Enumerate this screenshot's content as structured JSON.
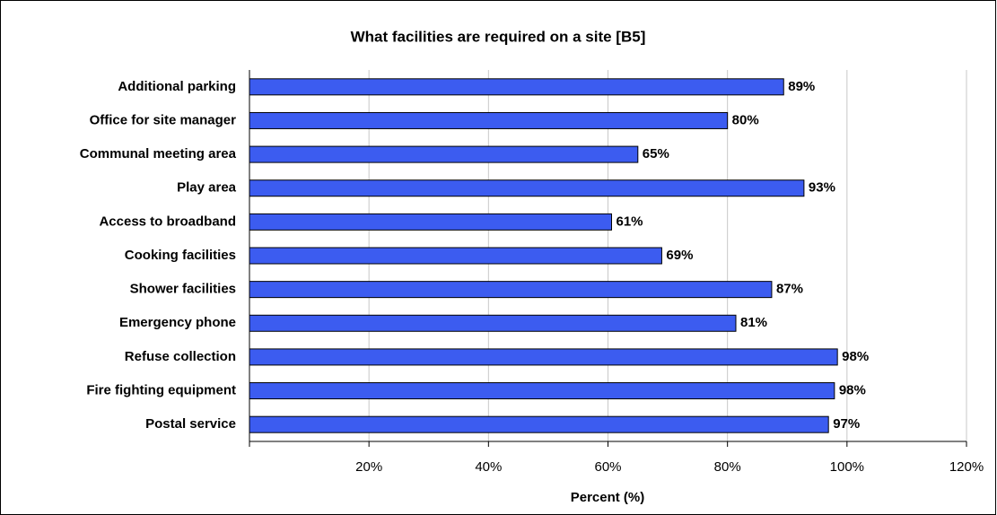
{
  "chart_data": {
    "type": "bar",
    "orientation": "horizontal",
    "title": "What facilities are required on a site [B5]",
    "xlabel": "Percent (%)",
    "categories": [
      "Additional parking",
      "Office for site manager",
      "Communal meeting area",
      "Play area",
      "Access to broadband",
      "Cooking facilities",
      "Shower facilities",
      "Emergency phone",
      "Refuse collection",
      "Fire fighting equipment",
      "Postal service"
    ],
    "values": [
      89.4,
      80,
      65,
      92.8,
      60.6,
      69,
      87.4,
      81.4,
      98.4,
      97.9,
      96.9
    ],
    "value_labels": [
      "89%",
      "80%",
      "65%",
      "93%",
      "61%",
      "69%",
      "87%",
      "81%",
      "98%",
      "98%",
      "97%"
    ],
    "color": "#3c5cf0",
    "xlim": [
      0,
      120
    ],
    "xticks": [
      {
        "value": 20,
        "label": "20%"
      },
      {
        "value": 40,
        "label": "40%"
      },
      {
        "value": 60,
        "label": "60%"
      },
      {
        "value": 80,
        "label": "80%"
      },
      {
        "value": 100,
        "label": "100%"
      },
      {
        "value": 120,
        "label": "120%"
      }
    ],
    "grid": true
  }
}
